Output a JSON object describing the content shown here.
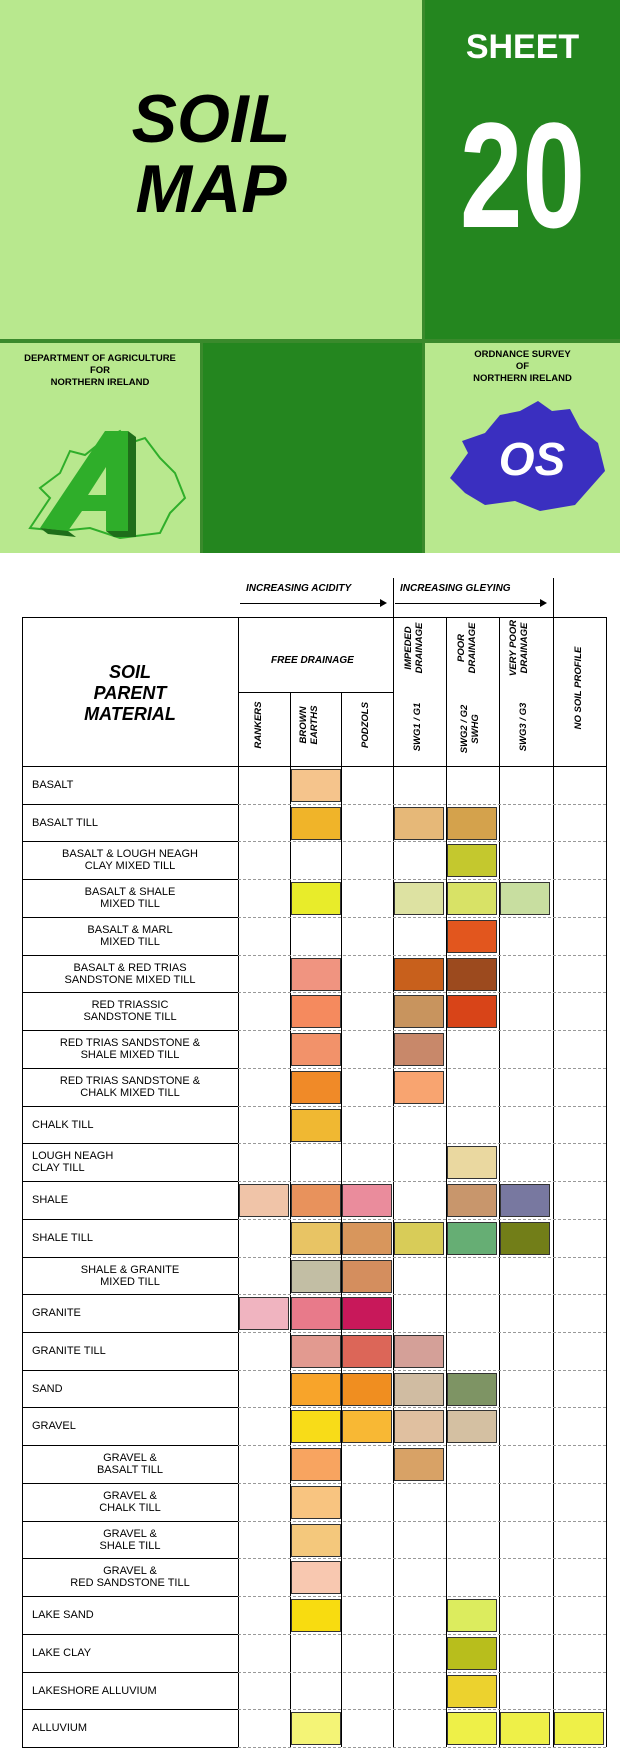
{
  "cover": {
    "title_line1": "SOIL",
    "title_line2": "MAP",
    "sheet_label": "SHEET",
    "sheet_number": "20",
    "dept_lines": [
      "DEPARTMENT OF AGRICULTURE",
      "FOR",
      "NORTHERN IRELAND"
    ],
    "os_lines": [
      "ORDNANCE SURVEY",
      "OF",
      "NORTHERN IRELAND"
    ],
    "os_logo_text": "OS",
    "colors": {
      "light_green": "#b8e88e",
      "dark_green": "#24861f",
      "os_blue": "#3a2fc0",
      "dept_green": "#2fae2a"
    }
  },
  "legend": {
    "increasing_acidity": "INCREASING ACIDITY",
    "increasing_gleying": "INCREASING GLEYING",
    "soil_parent_material": [
      "SOIL",
      "PARENT",
      "MATERIAL"
    ],
    "free_drainage": "FREE DRAINAGE",
    "columns": [
      {
        "group": [
          "IMPEDED",
          "DRAINAGE"
        ],
        "code": [
          "SWG1 / G1"
        ]
      },
      {
        "group": [
          "POOR",
          "DRAINAGE"
        ],
        "code": [
          "SWG2 / G2",
          "SWHG"
        ]
      },
      {
        "group": [
          "VERY POOR",
          "DRAINAGE"
        ],
        "code": [
          "SWG3 / G3"
        ]
      }
    ],
    "free_columns": [
      [
        "RANKERS"
      ],
      [
        "BROWN",
        "EARTHS"
      ],
      [
        "PODZOLS"
      ]
    ],
    "no_soil_profile": "NO SOIL PROFILE",
    "rows": [
      {
        "label": [
          "BASALT"
        ],
        "align": "left",
        "cells": [
          null,
          "#f5c48c",
          null,
          null,
          null,
          null,
          null
        ]
      },
      {
        "label": [
          "BASALT TILL"
        ],
        "align": "left",
        "cells": [
          null,
          "#f0b429",
          null,
          "#e6b878",
          "#d4a24c",
          null,
          null
        ]
      },
      {
        "label": [
          "BASALT & LOUGH  NEAGH",
          "CLAY MIXED TILL"
        ],
        "align": "center",
        "cells": [
          null,
          null,
          null,
          null,
          "#c4c82e",
          null,
          null
        ]
      },
      {
        "label": [
          "BASALT & SHALE",
          "MIXED TILL"
        ],
        "align": "center",
        "cells": [
          null,
          "#e8ec2a",
          null,
          "#dde2a2",
          "#d8e266",
          "#c8dea0",
          null
        ]
      },
      {
        "label": [
          "BASALT & MARL",
          "MIXED TILL"
        ],
        "align": "center",
        "cells": [
          null,
          null,
          null,
          null,
          "#e2561e",
          null,
          null
        ]
      },
      {
        "label": [
          "BASALT & RED TRIAS",
          "SANDSTONE MIXED TILL"
        ],
        "align": "center",
        "cells": [
          null,
          "#f09480",
          null,
          "#c8601c",
          "#9c4a1e",
          null,
          null
        ]
      },
      {
        "label": [
          "RED TRIASSIC",
          "SANDSTONE TILL"
        ],
        "align": "center",
        "cells": [
          null,
          "#f58a5e",
          null,
          "#c8945e",
          "#d84418",
          null,
          null
        ]
      },
      {
        "label": [
          "RED TRIAS SANDSTONE &",
          "SHALE MIXED TILL"
        ],
        "align": "center",
        "cells": [
          null,
          "#f2926a",
          null,
          "#c8886a",
          null,
          null,
          null
        ]
      },
      {
        "label": [
          "RED TRIAS SANDSTONE &",
          "CHALK MIXED TILL"
        ],
        "align": "center",
        "cells": [
          null,
          "#f08a28",
          null,
          "#f8a470",
          null,
          null,
          null
        ]
      },
      {
        "label": [
          "CHALK TILL"
        ],
        "align": "left",
        "cells": [
          null,
          "#f0b832",
          null,
          null,
          null,
          null,
          null
        ]
      },
      {
        "label": [
          "LOUGH NEAGH",
          "CLAY TILL"
        ],
        "align": "left",
        "cells": [
          null,
          null,
          null,
          null,
          "#ead8a0",
          null,
          null
        ]
      },
      {
        "label": [
          "SHALE"
        ],
        "align": "left",
        "cells": [
          "#f0c4a8",
          "#e8925c",
          "#ea8c9c",
          null,
          "#c8966c",
          "#7878a0",
          null
        ]
      },
      {
        "label": [
          "SHALE TILL"
        ],
        "align": "left",
        "cells": [
          null,
          "#e8c464",
          "#d8965c",
          "#d8cc58",
          "#66ae74",
          "#727e18",
          null
        ]
      },
      {
        "label": [
          "SHALE & GRANITE",
          "MIXED TILL"
        ],
        "align": "center",
        "cells": [
          null,
          "#c2bea4",
          "#d48e5e",
          null,
          null,
          null,
          null
        ]
      },
      {
        "label": [
          "GRANITE"
        ],
        "align": "left",
        "cells": [
          "#f0b4c0",
          "#e87a8a",
          "#c8185a",
          null,
          null,
          null,
          null
        ]
      },
      {
        "label": [
          "GRANITE TILL"
        ],
        "align": "left",
        "cells": [
          null,
          "#e29a90",
          "#dc6658",
          "#d4a098",
          null,
          null,
          null
        ]
      },
      {
        "label": [
          "SAND"
        ],
        "align": "left",
        "cells": [
          null,
          "#f8a42a",
          "#f08e20",
          "#d0bca2",
          "#7e9464",
          null,
          null
        ]
      },
      {
        "label": [
          "GRAVEL"
        ],
        "align": "left",
        "cells": [
          null,
          "#f8dc18",
          "#f8b834",
          "#e0c0a0",
          "#d4c0a2",
          null,
          null
        ]
      },
      {
        "label": [
          "GRAVEL &",
          "BASALT TILL"
        ],
        "align": "center",
        "cells": [
          null,
          "#f8a460",
          null,
          "#d8a266",
          null,
          null,
          null
        ]
      },
      {
        "label": [
          "GRAVEL &",
          "CHALK TILL"
        ],
        "align": "center",
        "cells": [
          null,
          "#f8c480",
          null,
          null,
          null,
          null,
          null
        ]
      },
      {
        "label": [
          "GRAVEL &",
          "SHALE TILL"
        ],
        "align": "center",
        "cells": [
          null,
          "#f4c87c",
          null,
          null,
          null,
          null,
          null
        ]
      },
      {
        "label": [
          "GRAVEL &",
          "RED SANDSTONE TILL"
        ],
        "align": "center",
        "cells": [
          null,
          "#f8c8b0",
          null,
          null,
          null,
          null,
          null
        ]
      },
      {
        "label": [
          "LAKE SAND"
        ],
        "align": "left",
        "cells": [
          null,
          "#f8dc10",
          null,
          null,
          "#dcec5e",
          null,
          null
        ]
      },
      {
        "label": [
          "LAKE CLAY"
        ],
        "align": "left",
        "cells": [
          null,
          null,
          null,
          null,
          "#b8be1c",
          null,
          null
        ]
      },
      {
        "label": [
          "LAKESHORE  ALLUVIUM"
        ],
        "align": "left",
        "cells": [
          null,
          null,
          null,
          null,
          "#ecd22e",
          null,
          null
        ]
      },
      {
        "label": [
          "ALLUVIUM"
        ],
        "align": "left",
        "cells": [
          null,
          "#f4f476",
          null,
          null,
          "#eef048",
          "#eef048",
          "#eef048"
        ]
      }
    ]
  }
}
